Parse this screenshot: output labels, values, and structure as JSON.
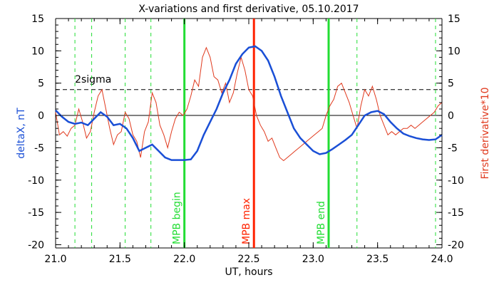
{
  "chart_data": {
    "type": "line",
    "title": "X-variations and first derivative, 05.10.2017",
    "xlabel": "UT, hours",
    "ylabel_left": "deltaX, nT",
    "ylabel_right": "First derivative*10",
    "xlim": [
      21.0,
      24.0
    ],
    "ylim": [
      -20.5,
      15
    ],
    "xticks": [
      "21.0",
      "21.5",
      "22.0",
      "22.5",
      "23.0",
      "23.5",
      "24.0"
    ],
    "xtick_values": [
      21.0,
      21.5,
      22.0,
      22.5,
      23.0,
      23.5,
      24.0
    ],
    "yticks": [
      "15",
      "10",
      "5",
      "0",
      "-5",
      "-10",
      "-15",
      "-20"
    ],
    "ytick_values": [
      15,
      10,
      5,
      0,
      -5,
      -10,
      -15,
      -20
    ],
    "colors": {
      "deltaX": "#1a4fd6",
      "derivative": "#e03a1e",
      "mpb_boundary": "#22dd33",
      "mpb_max": "#ff2200",
      "left_label": "#1a4fd6",
      "right_label": "#e03a1e"
    },
    "series": [
      {
        "key": "deltaX",
        "x": [
          21.0,
          21.05,
          21.1,
          21.15,
          21.2,
          21.25,
          21.3,
          21.35,
          21.4,
          21.45,
          21.5,
          21.55,
          21.6,
          21.65,
          21.7,
          21.75,
          21.8,
          21.85,
          21.9,
          21.95,
          22.0,
          22.05,
          22.1,
          22.15,
          22.2,
          22.25,
          22.3,
          22.35,
          22.4,
          22.45,
          22.5,
          22.55,
          22.6,
          22.65,
          22.7,
          22.75,
          22.8,
          22.85,
          22.9,
          22.95,
          23.0,
          23.05,
          23.1,
          23.15,
          23.2,
          23.25,
          23.3,
          23.35,
          23.4,
          23.45,
          23.5,
          23.55,
          23.6,
          23.65,
          23.7,
          23.75,
          23.8,
          23.85,
          23.9,
          23.95,
          24.0
        ],
        "values": [
          0.8,
          -0.2,
          -1.0,
          -1.3,
          -1.1,
          -1.5,
          -0.5,
          0.5,
          -0.2,
          -1.5,
          -1.3,
          -2.0,
          -3.5,
          -5.5,
          -5.0,
          -4.5,
          -5.5,
          -6.5,
          -6.9,
          -6.9,
          -6.9,
          -6.8,
          -5.5,
          -3.0,
          -1.0,
          1.0,
          3.5,
          5.5,
          8.0,
          9.5,
          10.5,
          10.7,
          10.0,
          8.5,
          6.0,
          3.0,
          0.5,
          -2.0,
          -3.5,
          -4.5,
          -5.5,
          -6.0,
          -5.8,
          -5.2,
          -4.5,
          -3.8,
          -3.0,
          -1.5,
          0.0,
          0.5,
          0.7,
          0.2,
          -1.0,
          -2.0,
          -2.8,
          -3.2,
          -3.5,
          -3.7,
          -3.8,
          -3.7,
          -3.0
        ]
      },
      {
        "key": "derivative",
        "x": [
          21.0,
          21.03,
          21.06,
          21.09,
          21.12,
          21.15,
          21.18,
          21.21,
          21.24,
          21.27,
          21.3,
          21.33,
          21.36,
          21.39,
          21.42,
          21.45,
          21.48,
          21.51,
          21.54,
          21.57,
          21.6,
          21.63,
          21.66,
          21.69,
          21.72,
          21.75,
          21.78,
          21.81,
          21.84,
          21.87,
          21.9,
          21.93,
          21.96,
          21.99,
          22.02,
          22.05,
          22.08,
          22.11,
          22.14,
          22.17,
          22.2,
          22.23,
          22.26,
          22.29,
          22.32,
          22.35,
          22.38,
          22.41,
          22.44,
          22.47,
          22.5,
          22.53,
          22.56,
          22.59,
          22.62,
          22.65,
          22.68,
          22.71,
          22.74,
          22.77,
          22.8,
          22.83,
          22.86,
          22.89,
          22.92,
          22.95,
          22.98,
          23.01,
          23.04,
          23.07,
          23.1,
          23.13,
          23.16,
          23.19,
          23.22,
          23.25,
          23.28,
          23.31,
          23.34,
          23.37,
          23.4,
          23.43,
          23.46,
          23.49,
          23.52,
          23.55,
          23.58,
          23.61,
          23.64,
          23.67,
          23.7,
          23.73,
          23.76,
          23.79,
          23.82,
          23.85,
          23.88,
          23.91,
          23.94,
          23.97,
          24.0
        ],
        "values": [
          0.5,
          -3.0,
          -2.5,
          -3.2,
          -2.0,
          -1.5,
          1.0,
          -1.0,
          -3.5,
          -2.5,
          0.5,
          3.0,
          4.0,
          1.0,
          -2.0,
          -4.5,
          -3.0,
          -2.5,
          0.5,
          -0.5,
          -3.0,
          -4.0,
          -6.5,
          -2.5,
          -1.0,
          3.5,
          2.0,
          -1.5,
          -3.0,
          -5.0,
          -2.5,
          -0.5,
          0.5,
          0.0,
          1.0,
          3.0,
          5.5,
          4.5,
          9.0,
          10.5,
          9.0,
          6.0,
          5.5,
          3.5,
          5.0,
          2.0,
          3.5,
          6.5,
          9.0,
          7.0,
          4.0,
          3.0,
          0.0,
          -1.5,
          -2.5,
          -4.0,
          -3.5,
          -5.0,
          -6.5,
          -7.0,
          -6.5,
          -6.0,
          -5.5,
          -5.0,
          -4.5,
          -4.0,
          -3.5,
          -3.0,
          -2.5,
          -2.0,
          0.0,
          1.5,
          2.5,
          4.5,
          5.0,
          3.5,
          2.0,
          0.0,
          -2.0,
          1.5,
          4.0,
          3.0,
          4.5,
          2.5,
          0.0,
          -1.5,
          -3.0,
          -2.5,
          -3.0,
          -2.5,
          -2.0,
          -2.0,
          -1.5,
          -2.0,
          -1.5,
          -1.0,
          -0.5,
          0.0,
          0.5,
          1.5,
          2.0
        ]
      }
    ],
    "reference_lines": {
      "two_sigma_label": "2sigma",
      "two_sigma_value": 4,
      "zero_value": 0
    },
    "dashed_green_lines": [
      21.15,
      21.28,
      21.54,
      21.74,
      23.34,
      23.95
    ],
    "markers": [
      {
        "label": "MPB begin",
        "x": 22.0,
        "color_key": "mpb_boundary"
      },
      {
        "label": "MPB max",
        "x": 22.54,
        "color_key": "mpb_max"
      },
      {
        "label": "MPB end",
        "x": 23.12,
        "color_key": "mpb_boundary"
      }
    ],
    "grid": false,
    "legend": "none"
  }
}
